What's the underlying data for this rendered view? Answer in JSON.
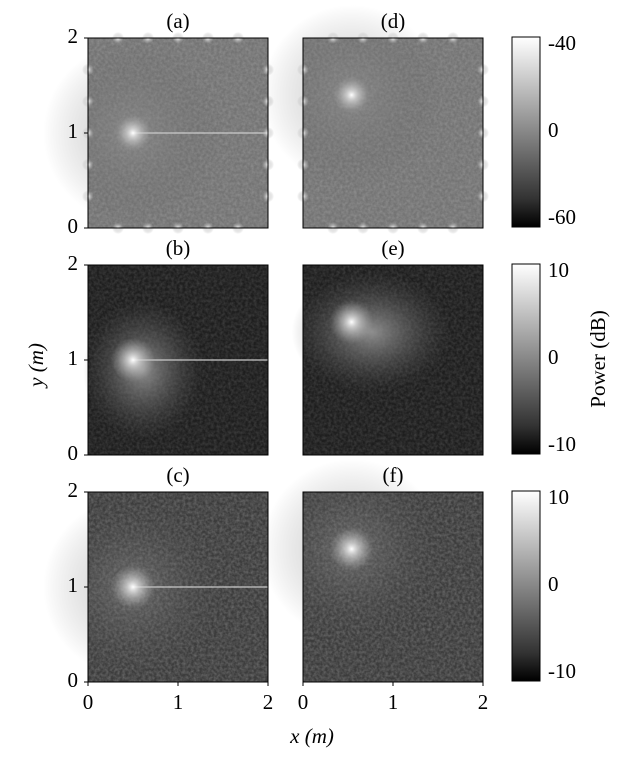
{
  "chart_data": [
    {
      "type": "image",
      "title": "(a)",
      "xlim": [
        0,
        2
      ],
      "ylim": [
        0,
        2
      ],
      "yticks": [
        0,
        1,
        2
      ]
    },
    {
      "type": "image",
      "title": "(b)",
      "xlim": [
        0,
        2
      ],
      "ylim": [
        0,
        2
      ],
      "yticks": [
        0,
        1,
        2
      ]
    },
    {
      "type": "image",
      "title": "(c)",
      "xlim": [
        0,
        2
      ],
      "ylim": [
        0,
        2
      ],
      "xticks": [
        0,
        1,
        2
      ],
      "yticks": [
        0,
        1,
        2
      ]
    },
    {
      "type": "image",
      "title": "(d)",
      "xlim": [
        0,
        2
      ],
      "ylim": [
        0,
        2
      ]
    },
    {
      "type": "image",
      "title": "(e)",
      "xlim": [
        0,
        2
      ],
      "ylim": [
        0,
        2
      ]
    },
    {
      "type": "image",
      "title": "(f)",
      "xlim": [
        0,
        2
      ],
      "ylim": [
        0,
        2
      ],
      "xticks": [
        0,
        1,
        2
      ]
    }
  ],
  "figure": {
    "x_label": "x (m)",
    "y_label": "y (m)",
    "colorbars": [
      {
        "tick_labels": [
          "-40",
          "0",
          "-60"
        ]
      },
      {
        "label": "Power (dB)",
        "tick_labels": [
          "10",
          "0",
          "-10"
        ]
      },
      {
        "tick_labels": [
          "10",
          "0",
          "-10"
        ]
      }
    ]
  }
}
